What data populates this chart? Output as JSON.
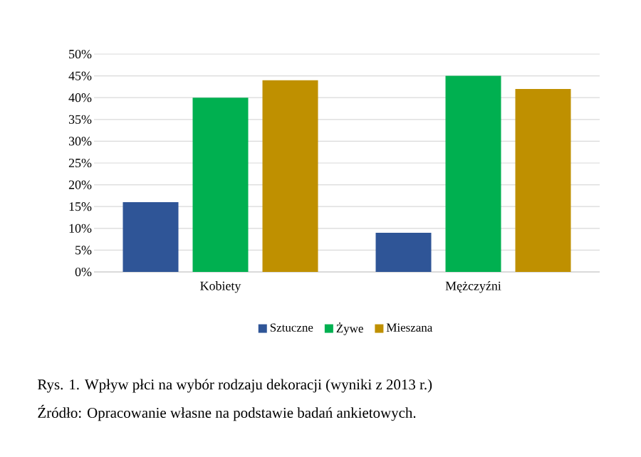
{
  "chart_data": {
    "type": "bar",
    "categories": [
      "Kobiety",
      "Mężczyźni"
    ],
    "series": [
      {
        "name": "Sztuczne",
        "color": "#2f5597",
        "values": [
          16,
          9
        ]
      },
      {
        "name": "Żywe",
        "color": "#00b050",
        "values": [
          40,
          45
        ]
      },
      {
        "name": "Mieszana",
        "color": "#bf9000",
        "values": [
          44,
          42
        ]
      }
    ],
    "ylim": [
      0,
      50
    ],
    "yticks": [
      {
        "value": 0,
        "label": "0%"
      },
      {
        "value": 5,
        "label": "5%"
      },
      {
        "value": 10,
        "label": "10%"
      },
      {
        "value": 15,
        "label": "15%"
      },
      {
        "value": 20,
        "label": "20%"
      },
      {
        "value": 25,
        "label": "25%"
      },
      {
        "value": 30,
        "label": "30%"
      },
      {
        "value": 35,
        "label": "35%"
      },
      {
        "value": 40,
        "label": "40%"
      },
      {
        "value": 45,
        "label": "45%"
      },
      {
        "value": 50,
        "label": "50%"
      }
    ],
    "grid": "y",
    "legend": "bottom",
    "annotations": [
      "Rys. 1. Wpływ płci na wybór rodzaju dekoracji (wyniki z 2013 r.)",
      "Źródło: Opracowanie własne na podstawie badań ankietowych."
    ]
  }
}
